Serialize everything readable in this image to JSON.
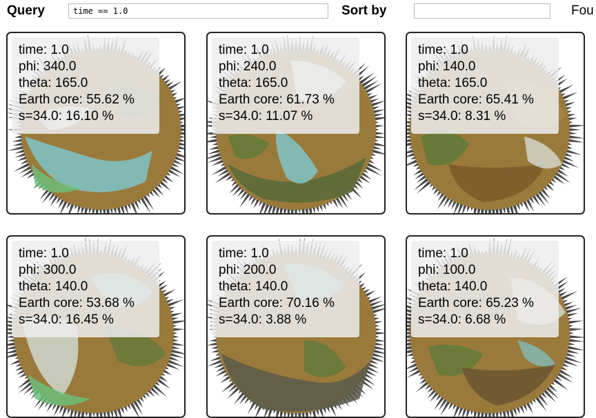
{
  "toolbar": {
    "query_label": "Query",
    "query_value": "time == 1.0",
    "sort_label": "Sort by",
    "sort_value": "",
    "found_label": "Fou"
  },
  "cards": [
    {
      "time": "time: 1.0",
      "phi": "phi: 340.0",
      "theta": "theta: 165.0",
      "core": "Earth core: 55.62 %",
      "s": "s=34.0: 16.10 %"
    },
    {
      "time": "time: 1.0",
      "phi": "phi: 240.0",
      "theta": "theta: 165.0",
      "core": "Earth core: 61.73 %",
      "s": "s=34.0: 11.07 %"
    },
    {
      "time": "time: 1.0",
      "phi": "phi: 140.0",
      "theta": "theta: 165.0",
      "core": "Earth core: 65.41 %",
      "s": "s=34.0: 8.31 %"
    },
    {
      "time": "time: 1.0",
      "phi": "phi: 300.0",
      "theta": "theta: 140.0",
      "core": "Earth core: 53.68 %",
      "s": "s=34.0: 16.45 %"
    },
    {
      "time": "time: 1.0",
      "phi": "phi: 200.0",
      "theta": "theta: 140.0",
      "core": "Earth core: 70.16 %",
      "s": "s=34.0: 3.88 %"
    },
    {
      "time": "time: 1.0",
      "phi": "phi: 100.0",
      "theta": "theta: 140.0",
      "core": "Earth core: 65.23 %",
      "s": "s=34.0: 6.68 %"
    }
  ],
  "colors": {
    "ocean_cyan": "#7fc4c9",
    "land_brown": "#9a7a3a",
    "land_green": "#5f7a3b",
    "spike_gray": "#4a4a4a",
    "ice_white": "#d9e2dc",
    "card_border": "#222222",
    "overlay": "#eeeeee"
  }
}
